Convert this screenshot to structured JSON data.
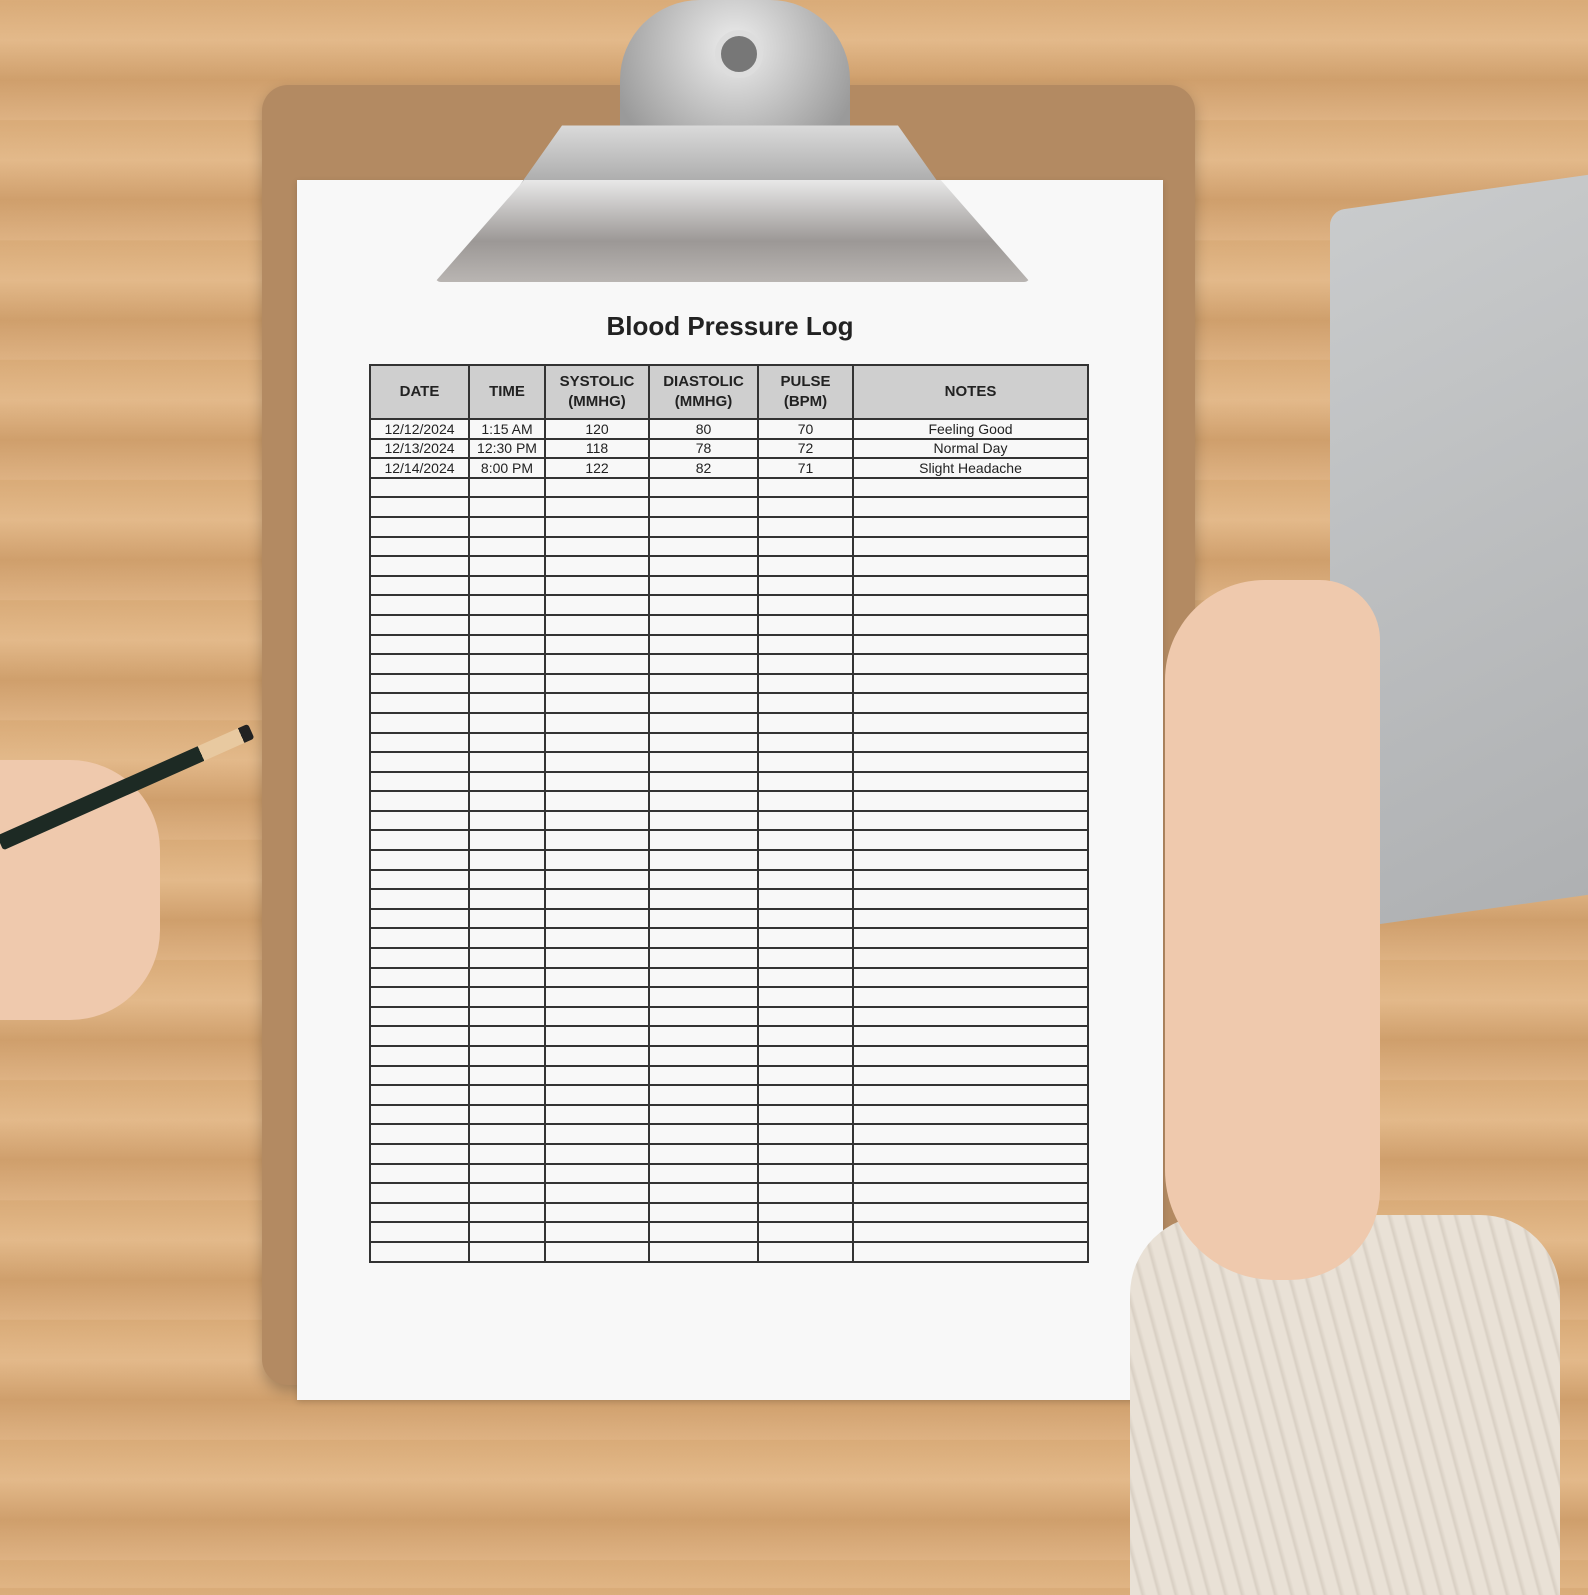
{
  "document": {
    "title": "Blood Pressure Log",
    "columns": [
      "DATE",
      "TIME",
      "SYSTOLIC (MMHG)",
      "DIASTOLIC (MMHG)",
      "PULSE (BPM)",
      "NOTES"
    ],
    "rows": [
      {
        "date": "12/12/2024",
        "time": "1:15 AM",
        "systolic": "120",
        "diastolic": "80",
        "pulse": "70",
        "notes": "Feeling Good"
      },
      {
        "date": "12/13/2024",
        "time": "12:30 PM",
        "systolic": "118",
        "diastolic": "78",
        "pulse": "72",
        "notes": "Normal Day"
      },
      {
        "date": "12/14/2024",
        "time": "8:00 PM",
        "systolic": "122",
        "diastolic": "82",
        "pulse": "71",
        "notes": "Slight Headache"
      }
    ]
  },
  "colors": {
    "header_fill": "#cfcfcf",
    "clipboard": "#b38a62",
    "paper": "#f8f8f8"
  }
}
